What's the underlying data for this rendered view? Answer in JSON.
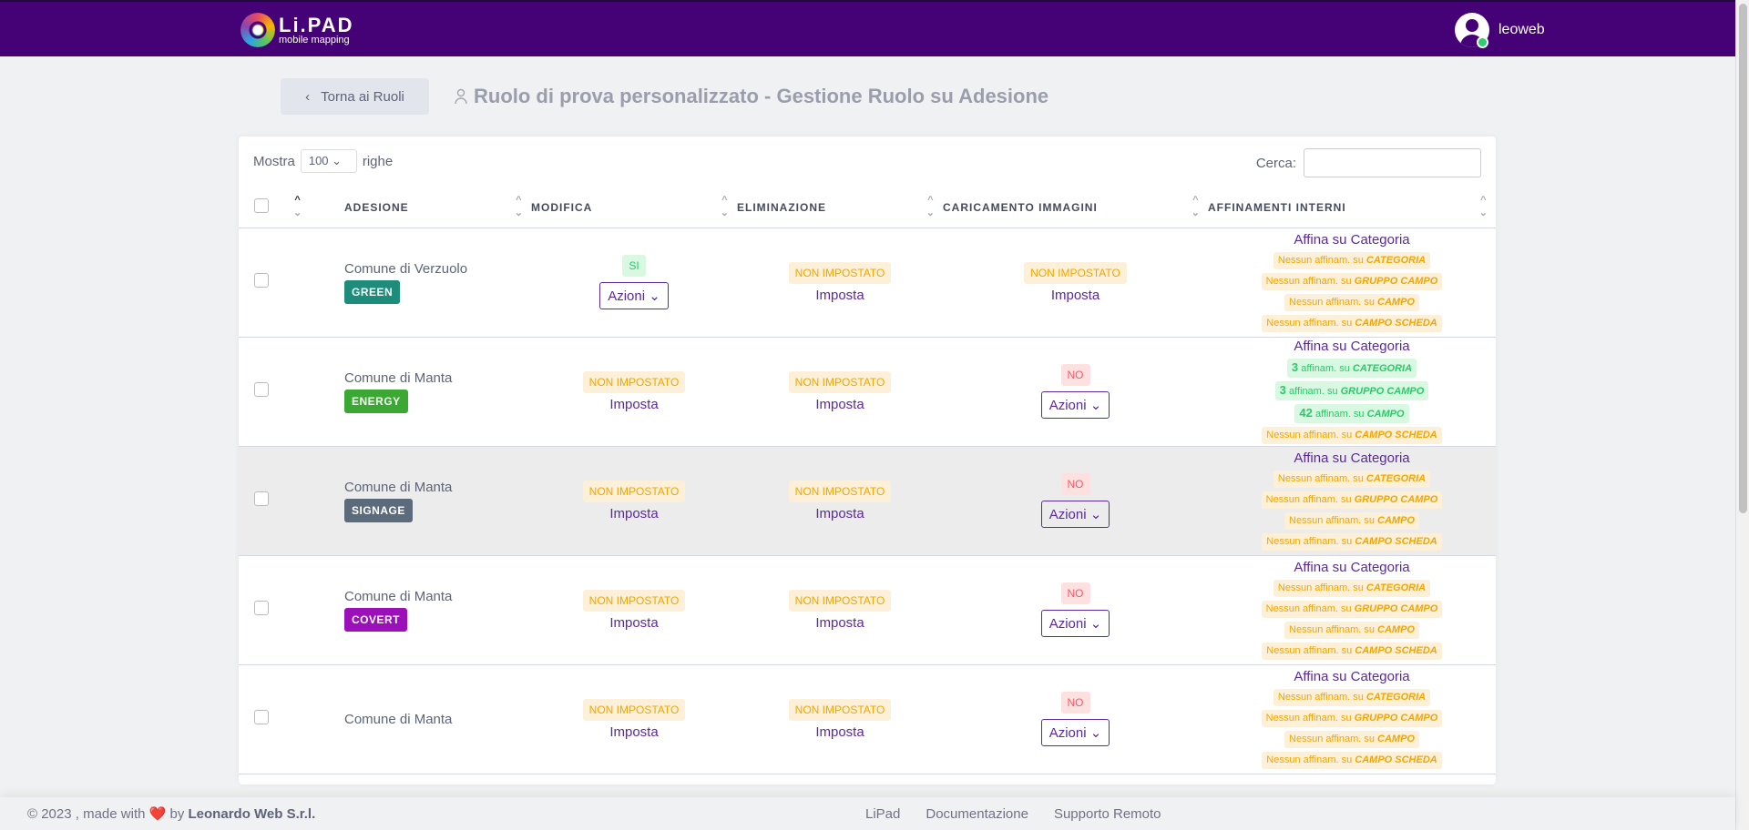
{
  "header": {
    "logo_text": "Li.PAD",
    "logo_sub": "mobile mapping",
    "username": "leoweb"
  },
  "nav": {
    "back_label": "Torna ai Ruoli",
    "title_bold": "Ruolo di prova personalizzato",
    "title_rest": " - Gestione Ruolo su Adesione"
  },
  "table_controls": {
    "show_label": "Mostra",
    "show_value": "100",
    "rows_label": "righe",
    "search_label": "Cerca:",
    "search_value": ""
  },
  "columns": [
    "ADESIONE",
    "MODIFICA",
    "ELIMINAZIONE",
    "CARICAMENTO IMMAGINI",
    "AFFINAMENTI INTERNI"
  ],
  "colors": {
    "primary": "#450176",
    "link": "#5a2a9a"
  },
  "rows": [
    {
      "name": "Comune di Verzuolo",
      "tag": "GREEN",
      "tag_color": "#1e8c7a",
      "hover": false,
      "modifica": {
        "status": "SI",
        "kind": "ok",
        "action": "Azioni"
      },
      "eliminazione": {
        "status": "NON IMPOSTATO",
        "kind": "warn",
        "action": "Imposta"
      },
      "caricamento": {
        "status": "NON IMPOSTATO",
        "kind": "warn",
        "action": "Imposta"
      },
      "affinamenti": {
        "title": "Affina su Categoria",
        "items": [
          {
            "count": "Nessun",
            "text": " affinam. su ",
            "target": "CATEGORIA",
            "kind": "warn"
          },
          {
            "count": "Nessun",
            "text": " affinam. su ",
            "target": "GRUPPO CAMPO",
            "kind": "warn"
          },
          {
            "count": "Nessun",
            "text": " affinam. su ",
            "target": "CAMPO",
            "kind": "warn"
          },
          {
            "count": "Nessun",
            "text": " affinam. su ",
            "target": "CAMPO SCHEDA",
            "kind": "warn"
          }
        ]
      }
    },
    {
      "name": "Comune di Manta",
      "tag": "ENERGY",
      "tag_color": "#3aa832",
      "hover": false,
      "modifica": {
        "status": "NON IMPOSTATO",
        "kind": "warn",
        "action": "Imposta"
      },
      "eliminazione": {
        "status": "NON IMPOSTATO",
        "kind": "warn",
        "action": "Imposta"
      },
      "caricamento": {
        "status": "NO",
        "kind": "no",
        "action": "Azioni"
      },
      "affinamenti": {
        "title": "Affina su Categoria",
        "items": [
          {
            "count": "3",
            "text": " affinam. su ",
            "target": "CATEGORIA",
            "kind": "ok"
          },
          {
            "count": "3",
            "text": " affinam. su ",
            "target": "GRUPPO CAMPO",
            "kind": "ok"
          },
          {
            "count": "42",
            "text": " affinam. su ",
            "target": "CAMPO",
            "kind": "ok"
          },
          {
            "count": "Nessun",
            "text": " affinam. su ",
            "target": "CAMPO SCHEDA",
            "kind": "warn"
          }
        ]
      }
    },
    {
      "name": "Comune di Manta",
      "tag": "SIGNAGE",
      "tag_color": "#5b6b7b",
      "hover": true,
      "modifica": {
        "status": "NON IMPOSTATO",
        "kind": "warn",
        "action": "Imposta"
      },
      "eliminazione": {
        "status": "NON IMPOSTATO",
        "kind": "warn",
        "action": "Imposta"
      },
      "caricamento": {
        "status": "NO",
        "kind": "no",
        "action": "Azioni"
      },
      "affinamenti": {
        "title": "Affina su Categoria",
        "items": [
          {
            "count": "Nessun",
            "text": " affinam. su ",
            "target": "CATEGORIA",
            "kind": "warn"
          },
          {
            "count": "Nessun",
            "text": " affinam. su ",
            "target": "GRUPPO CAMPO",
            "kind": "warn"
          },
          {
            "count": "Nessun",
            "text": " affinam. su ",
            "target": "CAMPO",
            "kind": "warn"
          },
          {
            "count": "Nessun",
            "text": " affinam. su ",
            "target": "CAMPO SCHEDA",
            "kind": "warn"
          }
        ]
      }
    },
    {
      "name": "Comune di Manta",
      "tag": "COVERT",
      "tag_color": "#9b10b8",
      "hover": false,
      "modifica": {
        "status": "NON IMPOSTATO",
        "kind": "warn",
        "action": "Imposta"
      },
      "eliminazione": {
        "status": "NON IMPOSTATO",
        "kind": "warn",
        "action": "Imposta"
      },
      "caricamento": {
        "status": "NO",
        "kind": "no",
        "action": "Azioni"
      },
      "affinamenti": {
        "title": "Affina su Categoria",
        "items": [
          {
            "count": "Nessun",
            "text": " affinam. su ",
            "target": "CATEGORIA",
            "kind": "warn"
          },
          {
            "count": "Nessun",
            "text": " affinam. su ",
            "target": "GRUPPO CAMPO",
            "kind": "warn"
          },
          {
            "count": "Nessun",
            "text": " affinam. su ",
            "target": "CAMPO",
            "kind": "warn"
          },
          {
            "count": "Nessun",
            "text": " affinam. su ",
            "target": "CAMPO SCHEDA",
            "kind": "warn"
          }
        ]
      }
    },
    {
      "name": "Comune di Manta",
      "tag": "",
      "tag_color": "#999999",
      "hover": false,
      "modifica": {
        "status": "NON IMPOSTATO",
        "kind": "warn",
        "action": "Imposta"
      },
      "eliminazione": {
        "status": "NON IMPOSTATO",
        "kind": "warn",
        "action": "Imposta"
      },
      "caricamento": {
        "status": "NO",
        "kind": "no",
        "action": "Azioni"
      },
      "affinamenti": {
        "title": "Affina su Categoria",
        "items": [
          {
            "count": "Nessun",
            "text": " affinam. su ",
            "target": "CATEGORIA",
            "kind": "warn"
          },
          {
            "count": "Nessun",
            "text": " affinam. su ",
            "target": "GRUPPO CAMPO",
            "kind": "warn"
          },
          {
            "count": "Nessun",
            "text": " affinam. su ",
            "target": "CAMPO",
            "kind": "warn"
          },
          {
            "count": "Nessun",
            "text": " affinam. su ",
            "target": "CAMPO SCHEDA",
            "kind": "warn"
          }
        ]
      }
    }
  ],
  "footer": {
    "copyright": "© 2023 , made with",
    "by": "by",
    "company": "Leonardo Web S.r.l.",
    "links": [
      "LiPad",
      "Documentazione",
      "Supporto Remoto"
    ]
  }
}
